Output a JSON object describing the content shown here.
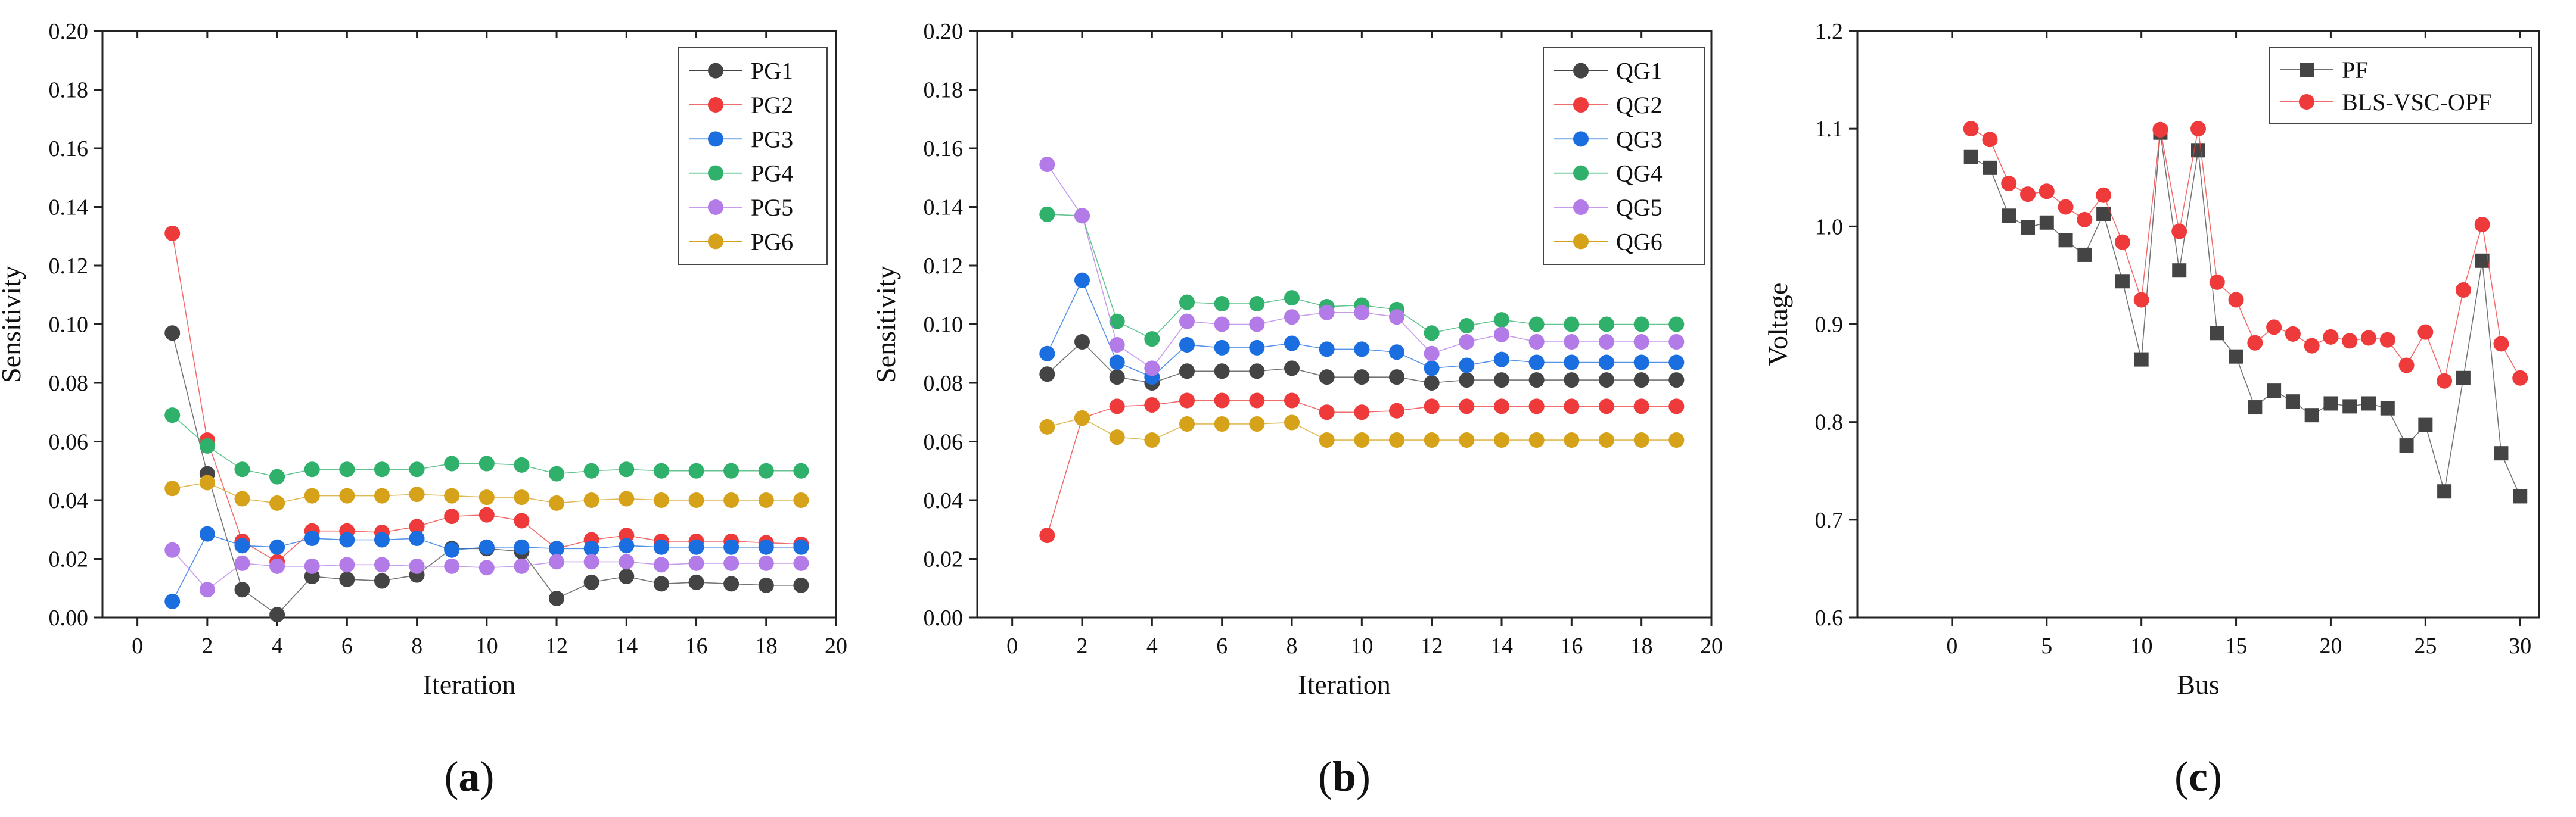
{
  "colors": {
    "PG1": "#444444",
    "PG2": "#ee3a3a",
    "PG3": "#1a6ee0",
    "PG4": "#2fb06b",
    "PG5": "#b37be8",
    "PG6": "#d6a21a",
    "PF": "#444444",
    "BLS": "#ee3a3a"
  },
  "chart_data": [
    {
      "panel_label": "(a)",
      "type": "line",
      "xlabel": "Iteration",
      "ylabel": "Sensitivity",
      "xlim": [
        -1,
        20
      ],
      "ylim": [
        0,
        0.2
      ],
      "xticks": [
        "0",
        "2",
        "4",
        "6",
        "8",
        "10",
        "12",
        "14",
        "16",
        "18",
        "20"
      ],
      "yticks": [
        "0.00",
        "0.02",
        "0.04",
        "0.06",
        "0.08",
        "0.10",
        "0.12",
        "0.14",
        "0.16",
        "0.18",
        "0.20"
      ],
      "legend_position": "top-right",
      "x": [
        1,
        2,
        3,
        4,
        5,
        6,
        7,
        8,
        9,
        10,
        11,
        12,
        13,
        14,
        15,
        16,
        17,
        18,
        19
      ],
      "series": [
        {
          "name": "PG1",
          "values": [
            0.097,
            0.049,
            0.0095,
            0.001,
            0.014,
            0.013,
            0.0125,
            0.0145,
            0.0235,
            0.0235,
            0.0225,
            0.0065,
            0.012,
            0.014,
            0.0115,
            0.012,
            0.0115,
            0.011,
            0.011
          ]
        },
        {
          "name": "PG2",
          "values": [
            0.131,
            0.0605,
            0.026,
            0.019,
            0.0295,
            0.0295,
            0.029,
            0.031,
            0.0345,
            0.035,
            0.033,
            0.0235,
            0.0265,
            0.028,
            0.026,
            0.026,
            0.026,
            0.0255,
            0.025
          ]
        },
        {
          "name": "PG3",
          "values": [
            0.0055,
            0.0285,
            0.0245,
            0.024,
            0.027,
            0.0265,
            0.0265,
            0.027,
            0.023,
            0.024,
            0.024,
            0.0235,
            0.0235,
            0.0245,
            0.024,
            0.024,
            0.024,
            0.024,
            0.024
          ]
        },
        {
          "name": "PG4",
          "values": [
            0.069,
            0.0585,
            0.0505,
            0.048,
            0.0505,
            0.0505,
            0.0505,
            0.0505,
            0.0525,
            0.0525,
            0.052,
            0.049,
            0.05,
            0.0505,
            0.05,
            0.05,
            0.05,
            0.05,
            0.05
          ]
        },
        {
          "name": "PG5",
          "values": [
            0.023,
            0.0095,
            0.0185,
            0.0175,
            0.0175,
            0.018,
            0.018,
            0.0175,
            0.0175,
            0.017,
            0.0175,
            0.019,
            0.019,
            0.019,
            0.018,
            0.0185,
            0.0185,
            0.0185,
            0.0185
          ]
        },
        {
          "name": "PG6",
          "values": [
            0.044,
            0.046,
            0.0405,
            0.039,
            0.0415,
            0.0415,
            0.0415,
            0.042,
            0.0415,
            0.041,
            0.041,
            0.039,
            0.04,
            0.0405,
            0.04,
            0.04,
            0.04,
            0.04,
            0.04
          ]
        }
      ]
    },
    {
      "panel_label": "(b)",
      "type": "line",
      "xlabel": "Iteration",
      "ylabel": "Sensitivity",
      "xlim": [
        -1,
        20
      ],
      "ylim": [
        0,
        0.2
      ],
      "xticks": [
        "0",
        "2",
        "4",
        "6",
        "8",
        "10",
        "12",
        "14",
        "16",
        "18",
        "20"
      ],
      "yticks": [
        "0.00",
        "0.02",
        "0.04",
        "0.06",
        "0.08",
        "0.10",
        "0.12",
        "0.14",
        "0.16",
        "0.18",
        "0.20"
      ],
      "legend_position": "top-right",
      "x": [
        1,
        2,
        3,
        4,
        5,
        6,
        7,
        8,
        9,
        10,
        11,
        12,
        13,
        14,
        15,
        16,
        17,
        18,
        19
      ],
      "series": [
        {
          "name": "QG1",
          "values": [
            0.083,
            0.094,
            0.082,
            0.08,
            0.084,
            0.084,
            0.084,
            0.085,
            0.082,
            0.082,
            0.082,
            0.08,
            0.081,
            0.081,
            0.081,
            0.081,
            0.081,
            0.081,
            0.081
          ]
        },
        {
          "name": "QG2",
          "values": [
            0.028,
            0.068,
            0.072,
            0.0725,
            0.074,
            0.074,
            0.074,
            0.074,
            0.07,
            0.07,
            0.0705,
            0.072,
            0.072,
            0.072,
            0.072,
            0.072,
            0.072,
            0.072,
            0.072
          ]
        },
        {
          "name": "QG3",
          "values": [
            0.09,
            0.115,
            0.087,
            0.082,
            0.093,
            0.092,
            0.092,
            0.0935,
            0.0915,
            0.0915,
            0.0905,
            0.085,
            0.086,
            0.088,
            0.087,
            0.087,
            0.087,
            0.087,
            0.087
          ]
        },
        {
          "name": "QG4",
          "values": [
            0.1375,
            0.137,
            0.101,
            0.095,
            0.1075,
            0.107,
            0.107,
            0.109,
            0.106,
            0.1065,
            0.105,
            0.097,
            0.0995,
            0.1015,
            0.1,
            0.1,
            0.1,
            0.1,
            0.1
          ]
        },
        {
          "name": "QG5",
          "values": [
            0.1545,
            0.137,
            0.093,
            0.085,
            0.101,
            0.1,
            0.1,
            0.1025,
            0.104,
            0.104,
            0.1025,
            0.09,
            0.094,
            0.0965,
            0.094,
            0.094,
            0.094,
            0.094,
            0.094
          ]
        },
        {
          "name": "QG6",
          "values": [
            0.065,
            0.068,
            0.0615,
            0.0605,
            0.066,
            0.066,
            0.066,
            0.0665,
            0.0605,
            0.0605,
            0.0605,
            0.0605,
            0.0605,
            0.0605,
            0.0605,
            0.0605,
            0.0605,
            0.0605,
            0.0605
          ]
        }
      ]
    },
    {
      "panel_label": "(c)",
      "type": "line",
      "xlabel": "Bus",
      "ylabel": "Voltage",
      "xlim": [
        -5,
        31
      ],
      "ylim": [
        0.6,
        1.2
      ],
      "xticks": [
        "0",
        "5",
        "10",
        "15",
        "20",
        "25",
        "30"
      ],
      "yticks": [
        "0.6",
        "0.7",
        "0.8",
        "0.9",
        "1.0",
        "1.1",
        "1.2"
      ],
      "legend_position": "top-right",
      "x": [
        1,
        2,
        3,
        4,
        5,
        6,
        7,
        8,
        9,
        10,
        11,
        12,
        13,
        14,
        15,
        16,
        17,
        18,
        19,
        20,
        21,
        22,
        23,
        24,
        25,
        26,
        27,
        28,
        29,
        30
      ],
      "series": [
        {
          "name": "PF",
          "marker": "square",
          "values": [
            1.071,
            1.06,
            1.011,
            0.999,
            1.004,
            0.986,
            0.971,
            1.013,
            0.944,
            0.864,
            1.096,
            0.955,
            1.078,
            0.891,
            0.867,
            0.815,
            0.832,
            0.821,
            0.807,
            0.819,
            0.816,
            0.819,
            0.814,
            0.776,
            0.797,
            0.729,
            0.845,
            0.965,
            0.768,
            0.724
          ]
        },
        {
          "name": "BLS-VSC-OPF",
          "marker": "circle",
          "values": [
            1.1,
            1.089,
            1.044,
            1.033,
            1.036,
            1.02,
            1.007,
            1.032,
            0.984,
            0.925,
            1.099,
            0.995,
            1.1,
            0.943,
            0.925,
            0.881,
            0.897,
            0.89,
            0.878,
            0.887,
            0.883,
            0.886,
            0.884,
            0.858,
            0.892,
            0.842,
            0.935,
            1.002,
            0.88,
            0.845
          ]
        }
      ]
    }
  ]
}
